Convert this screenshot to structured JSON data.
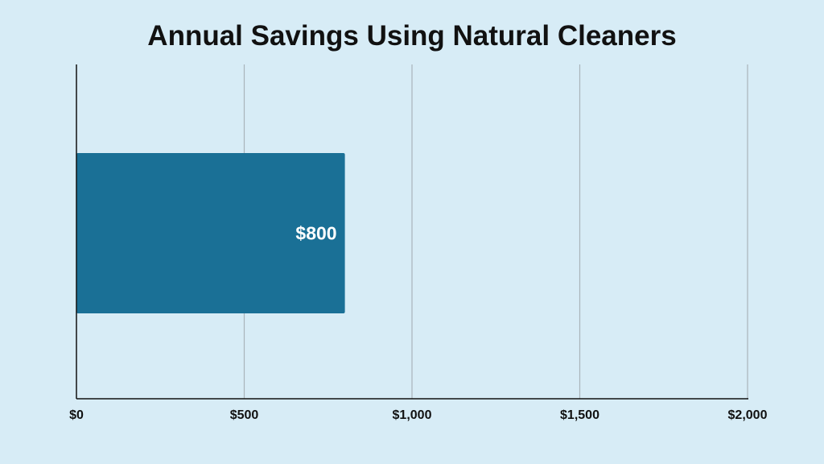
{
  "chart_data": {
    "type": "bar",
    "orientation": "horizontal",
    "title": "Annual Savings Using Natural Cleaners",
    "categories": [
      ""
    ],
    "values": [
      800
    ],
    "data_labels": [
      "$800"
    ],
    "xlim": [
      0,
      2000
    ],
    "x_ticks": [
      0,
      500,
      1000,
      1500,
      2000
    ],
    "x_tick_labels": [
      "$0",
      "$500",
      "$1,000",
      "$1,500",
      "$2,000"
    ],
    "xlabel": "",
    "ylabel": "",
    "grid": "vertical",
    "legend": "none"
  },
  "colors": {
    "background": "#d7ecf6",
    "bar": "#1a7096",
    "gridline": "#a9b4ba",
    "axis": "#111111",
    "text": "#111111",
    "data_label": "#ffffff"
  }
}
